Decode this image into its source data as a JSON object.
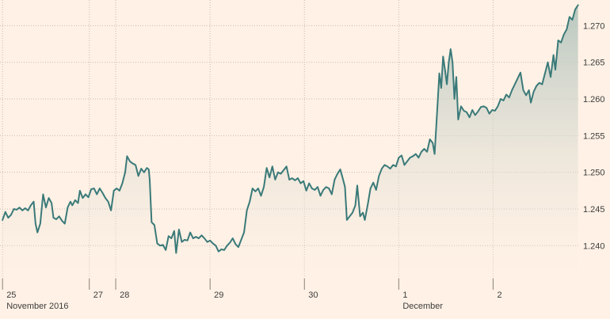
{
  "chart_data": {
    "type": "area",
    "title": "",
    "xlabel": "",
    "ylabel": "",
    "ylim": [
      1.2355,
      1.2735
    ],
    "y_ticks": [
      1.24,
      1.245,
      1.25,
      1.255,
      1.26,
      1.265,
      1.27
    ],
    "y_tick_labels": [
      "1.240",
      "1.245",
      "1.250",
      "1.255",
      "1.260",
      "1.265",
      "1.270"
    ],
    "grid": true,
    "x_ticks": [
      {
        "label": "25",
        "x": 0.0
      },
      {
        "label": "27",
        "x": 0.92
      },
      {
        "label": "28",
        "x": 1.2
      },
      {
        "label": "29",
        "x": 2.2
      },
      {
        "label": "30",
        "x": 3.2
      },
      {
        "label": "1",
        "x": 4.2
      },
      {
        "label": "2",
        "x": 5.2
      }
    ],
    "x_period_labels": [
      {
        "label": "November 2016",
        "x": 0.0
      },
      {
        "label": "December",
        "x": 4.2
      }
    ],
    "colors": {
      "line": "#3a7a79",
      "fill_top": "#b4c5bd",
      "fill_bottom": "#fff1e5",
      "background": "#fff1e5"
    },
    "series": [
      {
        "values": [
          [
            0.0,
            1.2435
          ],
          [
            0.03,
            1.2446
          ],
          [
            0.06,
            1.2438
          ],
          [
            0.09,
            1.2442
          ],
          [
            0.12,
            1.245
          ],
          [
            0.15,
            1.2449
          ],
          [
            0.18,
            1.2452
          ],
          [
            0.21,
            1.2448
          ],
          [
            0.24,
            1.2451
          ],
          [
            0.27,
            1.2448
          ],
          [
            0.3,
            1.2455
          ],
          [
            0.33,
            1.246
          ],
          [
            0.35,
            1.243
          ],
          [
            0.37,
            1.2418
          ],
          [
            0.4,
            1.243
          ],
          [
            0.43,
            1.247
          ],
          [
            0.46,
            1.2452
          ],
          [
            0.49,
            1.2465
          ],
          [
            0.52,
            1.2458
          ],
          [
            0.54,
            1.2438
          ],
          [
            0.57,
            1.2436
          ],
          [
            0.6,
            1.244
          ],
          [
            0.63,
            1.2434
          ],
          [
            0.66,
            1.243
          ],
          [
            0.69,
            1.2452
          ],
          [
            0.72,
            1.246
          ],
          [
            0.74,
            1.2455
          ],
          [
            0.77,
            1.2462
          ],
          [
            0.8,
            1.2458
          ],
          [
            0.82,
            1.2475
          ],
          [
            0.85,
            1.2465
          ],
          [
            0.88,
            1.247
          ],
          [
            0.91,
            1.2466
          ],
          [
            0.94,
            1.2477
          ],
          [
            0.97,
            1.2478
          ],
          [
            1.0,
            1.247
          ],
          [
            1.03,
            1.2478
          ],
          [
            1.06,
            1.2472
          ],
          [
            1.09,
            1.2465
          ],
          [
            1.12,
            1.246
          ],
          [
            1.15,
            1.2448
          ],
          [
            1.18,
            1.2475
          ],
          [
            1.21,
            1.2478
          ],
          [
            1.24,
            1.2475
          ],
          [
            1.27,
            1.2485
          ],
          [
            1.3,
            1.25
          ],
          [
            1.32,
            1.2522
          ],
          [
            1.35,
            1.2515
          ],
          [
            1.38,
            1.2512
          ],
          [
            1.41,
            1.251
          ],
          [
            1.44,
            1.2495
          ],
          [
            1.47,
            1.2505
          ],
          [
            1.5,
            1.25
          ],
          [
            1.53,
            1.2506
          ],
          [
            1.55,
            1.2504
          ],
          [
            1.56,
            1.249
          ],
          [
            1.58,
            1.2432
          ],
          [
            1.61,
            1.2428
          ],
          [
            1.64,
            1.2403
          ],
          [
            1.67,
            1.24
          ],
          [
            1.7,
            1.2401
          ],
          [
            1.73,
            1.2394
          ],
          [
            1.76,
            1.2413
          ],
          [
            1.79,
            1.241
          ],
          [
            1.82,
            1.242
          ],
          [
            1.84,
            1.239
          ],
          [
            1.87,
            1.2422
          ],
          [
            1.9,
            1.2405
          ],
          [
            1.93,
            1.2408
          ],
          [
            1.96,
            1.2407
          ],
          [
            1.99,
            1.2418
          ],
          [
            2.02,
            1.241
          ],
          [
            2.05,
            1.2412
          ],
          [
            2.08,
            1.241
          ],
          [
            2.11,
            1.2414
          ],
          [
            2.14,
            1.241
          ],
          [
            2.17,
            1.2405
          ],
          [
            2.2,
            1.2407
          ],
          [
            2.23,
            1.2403
          ],
          [
            2.26,
            1.24
          ],
          [
            2.29,
            1.2392
          ],
          [
            2.32,
            1.2395
          ],
          [
            2.35,
            1.2394
          ],
          [
            2.38,
            1.24
          ],
          [
            2.41,
            1.2404
          ],
          [
            2.44,
            1.241
          ],
          [
            2.47,
            1.2402
          ],
          [
            2.5,
            1.2398
          ],
          [
            2.53,
            1.2408
          ],
          [
            2.56,
            1.2418
          ],
          [
            2.59,
            1.2448
          ],
          [
            2.62,
            1.246
          ],
          [
            2.65,
            1.2478
          ],
          [
            2.68,
            1.2474
          ],
          [
            2.71,
            1.2478
          ],
          [
            2.74,
            1.2468
          ],
          [
            2.77,
            1.248
          ],
          [
            2.8,
            1.2506
          ],
          [
            2.83,
            1.2493
          ],
          [
            2.86,
            1.2508
          ],
          [
            2.89,
            1.249
          ],
          [
            2.92,
            1.25
          ],
          [
            2.95,
            1.2498
          ],
          [
            2.98,
            1.2503
          ],
          [
            3.01,
            1.2508
          ],
          [
            3.04,
            1.249
          ],
          [
            3.07,
            1.2492
          ],
          [
            3.1,
            1.2489
          ],
          [
            3.13,
            1.2492
          ],
          [
            3.16,
            1.2485
          ],
          [
            3.19,
            1.2488
          ],
          [
            3.22,
            1.2475
          ],
          [
            3.25,
            1.2485
          ],
          [
            3.28,
            1.2478
          ],
          [
            3.31,
            1.2476
          ],
          [
            3.34,
            1.248
          ],
          [
            3.37,
            1.2468
          ],
          [
            3.4,
            1.2476
          ],
          [
            3.43,
            1.248
          ],
          [
            3.46,
            1.2478
          ],
          [
            3.49,
            1.247
          ],
          [
            3.52,
            1.249
          ],
          [
            3.55,
            1.2498
          ],
          [
            3.58,
            1.2504
          ],
          [
            3.61,
            1.249
          ],
          [
            3.63,
            1.248
          ],
          [
            3.65,
            1.2435
          ],
          [
            3.68,
            1.244
          ],
          [
            3.71,
            1.2445
          ],
          [
            3.74,
            1.2455
          ],
          [
            3.76,
            1.2482
          ],
          [
            3.79,
            1.244
          ],
          [
            3.82,
            1.2445
          ],
          [
            3.84,
            1.2435
          ],
          [
            3.87,
            1.2455
          ],
          [
            3.9,
            1.2478
          ],
          [
            3.93,
            1.2486
          ],
          [
            3.96,
            1.2476
          ],
          [
            3.99,
            1.2495
          ],
          [
            4.02,
            1.2505
          ],
          [
            4.05,
            1.251
          ],
          [
            4.08,
            1.2508
          ],
          [
            4.11,
            1.2505
          ],
          [
            4.14,
            1.251
          ],
          [
            4.17,
            1.2508
          ],
          [
            4.2,
            1.252
          ],
          [
            4.23,
            1.2523
          ],
          [
            4.26,
            1.251
          ],
          [
            4.29,
            1.2515
          ],
          [
            4.32,
            1.252
          ],
          [
            4.35,
            1.2522
          ],
          [
            4.38,
            1.2525
          ],
          [
            4.41,
            1.252
          ],
          [
            4.44,
            1.2528
          ],
          [
            4.47,
            1.2532
          ],
          [
            4.5,
            1.2528
          ],
          [
            4.53,
            1.2545
          ],
          [
            4.56,
            1.254
          ],
          [
            4.58,
            1.2525
          ],
          [
            4.61,
            1.259
          ],
          [
            4.63,
            1.2635
          ],
          [
            4.65,
            1.2615
          ],
          [
            4.67,
            1.2658
          ],
          [
            4.69,
            1.264
          ],
          [
            4.71,
            1.262
          ],
          [
            4.73,
            1.265
          ],
          [
            4.75,
            1.2668
          ],
          [
            4.77,
            1.265
          ],
          [
            4.79,
            1.26
          ],
          [
            4.81,
            1.263
          ],
          [
            4.83,
            1.2572
          ],
          [
            4.86,
            1.259
          ],
          [
            4.89,
            1.2584
          ],
          [
            4.92,
            1.2582
          ],
          [
            4.95,
            1.2575
          ],
          [
            4.98,
            1.2585
          ],
          [
            5.01,
            1.2578
          ],
          [
            5.04,
            1.2583
          ],
          [
            5.07,
            1.2589
          ],
          [
            5.1,
            1.259
          ],
          [
            5.13,
            1.2588
          ],
          [
            5.16,
            1.258
          ],
          [
            5.19,
            1.2585
          ],
          [
            5.22,
            1.2584
          ],
          [
            5.25,
            1.259
          ],
          [
            5.28,
            1.26
          ],
          [
            5.31,
            1.2598
          ],
          [
            5.34,
            1.2606
          ],
          [
            5.37,
            1.2602
          ],
          [
            5.4,
            1.2612
          ],
          [
            5.43,
            1.262
          ],
          [
            5.46,
            1.2628
          ],
          [
            5.49,
            1.2636
          ],
          [
            5.52,
            1.2612
          ],
          [
            5.55,
            1.2605
          ],
          [
            5.58,
            1.2612
          ],
          [
            5.6,
            1.2595
          ],
          [
            5.63,
            1.261
          ],
          [
            5.66,
            1.2618
          ],
          [
            5.69,
            1.2622
          ],
          [
            5.72,
            1.262
          ],
          [
            5.75,
            1.2635
          ],
          [
            5.78,
            1.265
          ],
          [
            5.81,
            1.263
          ],
          [
            5.84,
            1.266
          ],
          [
            5.86,
            1.264
          ],
          [
            5.89,
            1.268
          ],
          [
            5.92,
            1.2677
          ],
          [
            5.95,
            1.2688
          ],
          [
            5.98,
            1.2695
          ],
          [
            6.01,
            1.2712
          ],
          [
            6.04,
            1.2708
          ],
          [
            6.07,
            1.2722
          ],
          [
            6.1,
            1.2728
          ]
        ]
      }
    ]
  }
}
